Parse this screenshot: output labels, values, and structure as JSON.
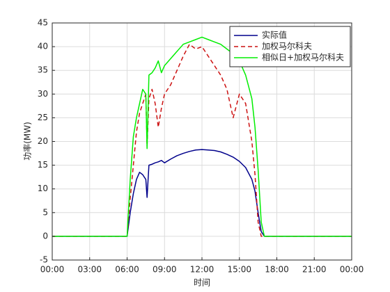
{
  "chart_data": {
    "type": "line",
    "xlabel": "时间",
    "ylabel": "功率(MW)",
    "x": [
      0,
      6,
      6.25,
      6.5,
      6.75,
      7,
      7.25,
      7.5,
      7.6,
      7.75,
      8,
      8.25,
      8.5,
      8.75,
      9,
      9.5,
      10,
      10.5,
      11,
      11.5,
      12,
      12.5,
      13,
      13.5,
      14,
      14.5,
      15,
      15.5,
      16,
      16.25,
      16.5,
      16.75,
      17,
      24
    ],
    "series": [
      {
        "name": "实际值",
        "color": "#00008b",
        "linestyle": "solid",
        "values": [
          0,
          0,
          5,
          9,
          12,
          13.5,
          13,
          12,
          8.2,
          15,
          15.2,
          15.5,
          15.7,
          16,
          15.5,
          16.3,
          17,
          17.5,
          17.9,
          18.2,
          18.3,
          18.2,
          18.1,
          17.8,
          17.3,
          16.7,
          15.8,
          14.5,
          12,
          9.5,
          5,
          1,
          0,
          0
        ]
      },
      {
        "name": "加权马尔科夫",
        "color": "#cc1111",
        "linestyle": "dashed",
        "values": [
          0,
          0,
          8,
          15,
          22,
          26,
          28,
          30,
          19,
          29,
          31,
          28,
          23,
          27,
          30,
          32,
          35,
          38,
          40.5,
          39.5,
          40,
          38,
          36,
          34,
          31,
          25,
          30,
          28,
          20,
          13,
          3,
          0,
          0,
          0
        ]
      },
      {
        "name": "相似日+加权马尔科夫",
        "color": "#00ee00",
        "linestyle": "solid",
        "values": [
          0,
          0,
          12,
          21,
          25,
          28,
          31,
          30,
          18.5,
          34,
          34.5,
          35.5,
          37,
          34.5,
          36,
          37.5,
          39,
          40.5,
          41,
          41.5,
          42,
          41.5,
          41,
          40.5,
          39.5,
          38.5,
          37,
          34,
          29,
          23,
          14,
          3,
          0,
          0
        ]
      }
    ],
    "xlim": [
      0,
      24
    ],
    "xticks": [
      {
        "value": 0,
        "label": "00:00"
      },
      {
        "value": 3,
        "label": "03:00"
      },
      {
        "value": 6,
        "label": "06:00"
      },
      {
        "value": 9,
        "label": "09:00"
      },
      {
        "value": 12,
        "label": "12:00"
      },
      {
        "value": 15,
        "label": "15:00"
      },
      {
        "value": 18,
        "label": "18:00"
      },
      {
        "value": 21,
        "label": "21:00"
      },
      {
        "value": 24,
        "label": "00:00"
      }
    ],
    "ylim": [
      -5,
      45
    ],
    "yticks": [
      -5,
      0,
      5,
      10,
      15,
      20,
      25,
      30,
      35,
      40,
      45
    ],
    "grid": true,
    "legend": "northeast"
  }
}
